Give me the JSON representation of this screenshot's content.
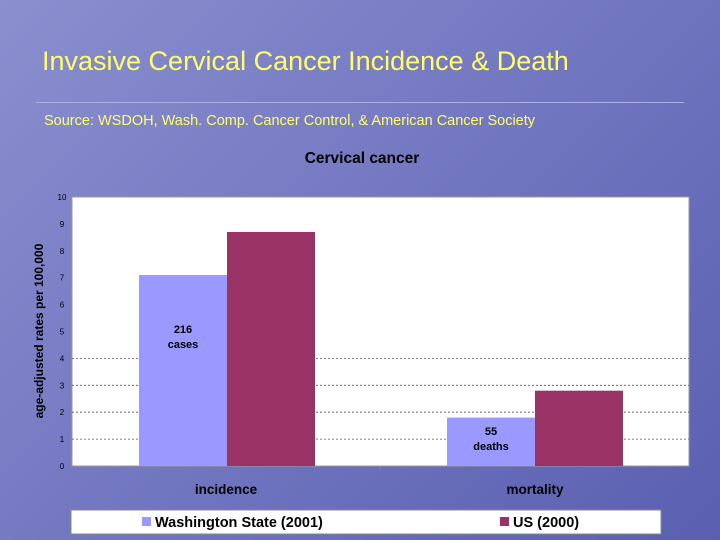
{
  "slide": {
    "title": "Invasive Cervical Cancer Incidence & Death",
    "source": "Source: WSDOH, Wash. Comp. Cancer Control, & American Cancer Society"
  },
  "colors": {
    "title": "#ffff66",
    "washington": "#9999ff",
    "us": "#993366",
    "plot_bg": "#ffffff"
  },
  "chart_data": {
    "type": "bar",
    "title": "Cervical cancer",
    "xlabel": "",
    "ylabel": "age-adjusted rates per 100,000",
    "ylim": [
      0,
      10
    ],
    "yticks": [
      "0",
      "1",
      "2",
      "3",
      "4",
      "5",
      "6",
      "7",
      "8",
      "9",
      "10"
    ],
    "gridlines": [
      1,
      2,
      3,
      4
    ],
    "categories": [
      "incidence",
      "mortality"
    ],
    "series": [
      {
        "name": "Washington State (2001)",
        "values": [
          7.1,
          1.8
        ],
        "annotations": [
          "216\ncases",
          "55\ndeaths"
        ]
      },
      {
        "name": "US (2000)",
        "values": [
          8.7,
          2.8
        ]
      }
    ],
    "legend_position": "bottom"
  }
}
